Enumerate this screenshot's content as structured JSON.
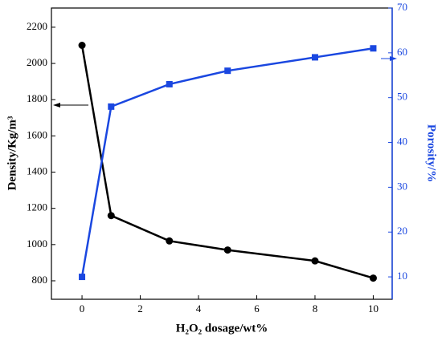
{
  "chart_data": {
    "type": "line",
    "x": [
      0,
      1,
      3,
      5,
      8,
      10
    ],
    "xlabel": "H₂O₂ dosage/wt%",
    "ylabel": "Density/Kg/m³",
    "y2label": "Porosity/%",
    "xlim": [
      -1.05,
      10.65
    ],
    "xticks": [
      0,
      2,
      4,
      6,
      8,
      10
    ],
    "ylim": [
      698,
      2306
    ],
    "yticks": [
      800,
      1000,
      1200,
      1400,
      1600,
      1800,
      2000,
      2200
    ],
    "y2lim": [
      5,
      70
    ],
    "y2ticks": [
      10,
      20,
      30,
      40,
      50,
      60,
      70
    ],
    "series": [
      {
        "name": "Density",
        "color": "#000000",
        "marker": "circle",
        "values": [
          2100,
          1160,
          1020,
          970,
          910,
          815
        ]
      },
      {
        "name": "Porosity",
        "color": "#1a47e0",
        "marker": "square",
        "axis": "y2",
        "values": [
          10,
          48,
          53,
          56,
          59,
          61
        ]
      }
    ]
  }
}
